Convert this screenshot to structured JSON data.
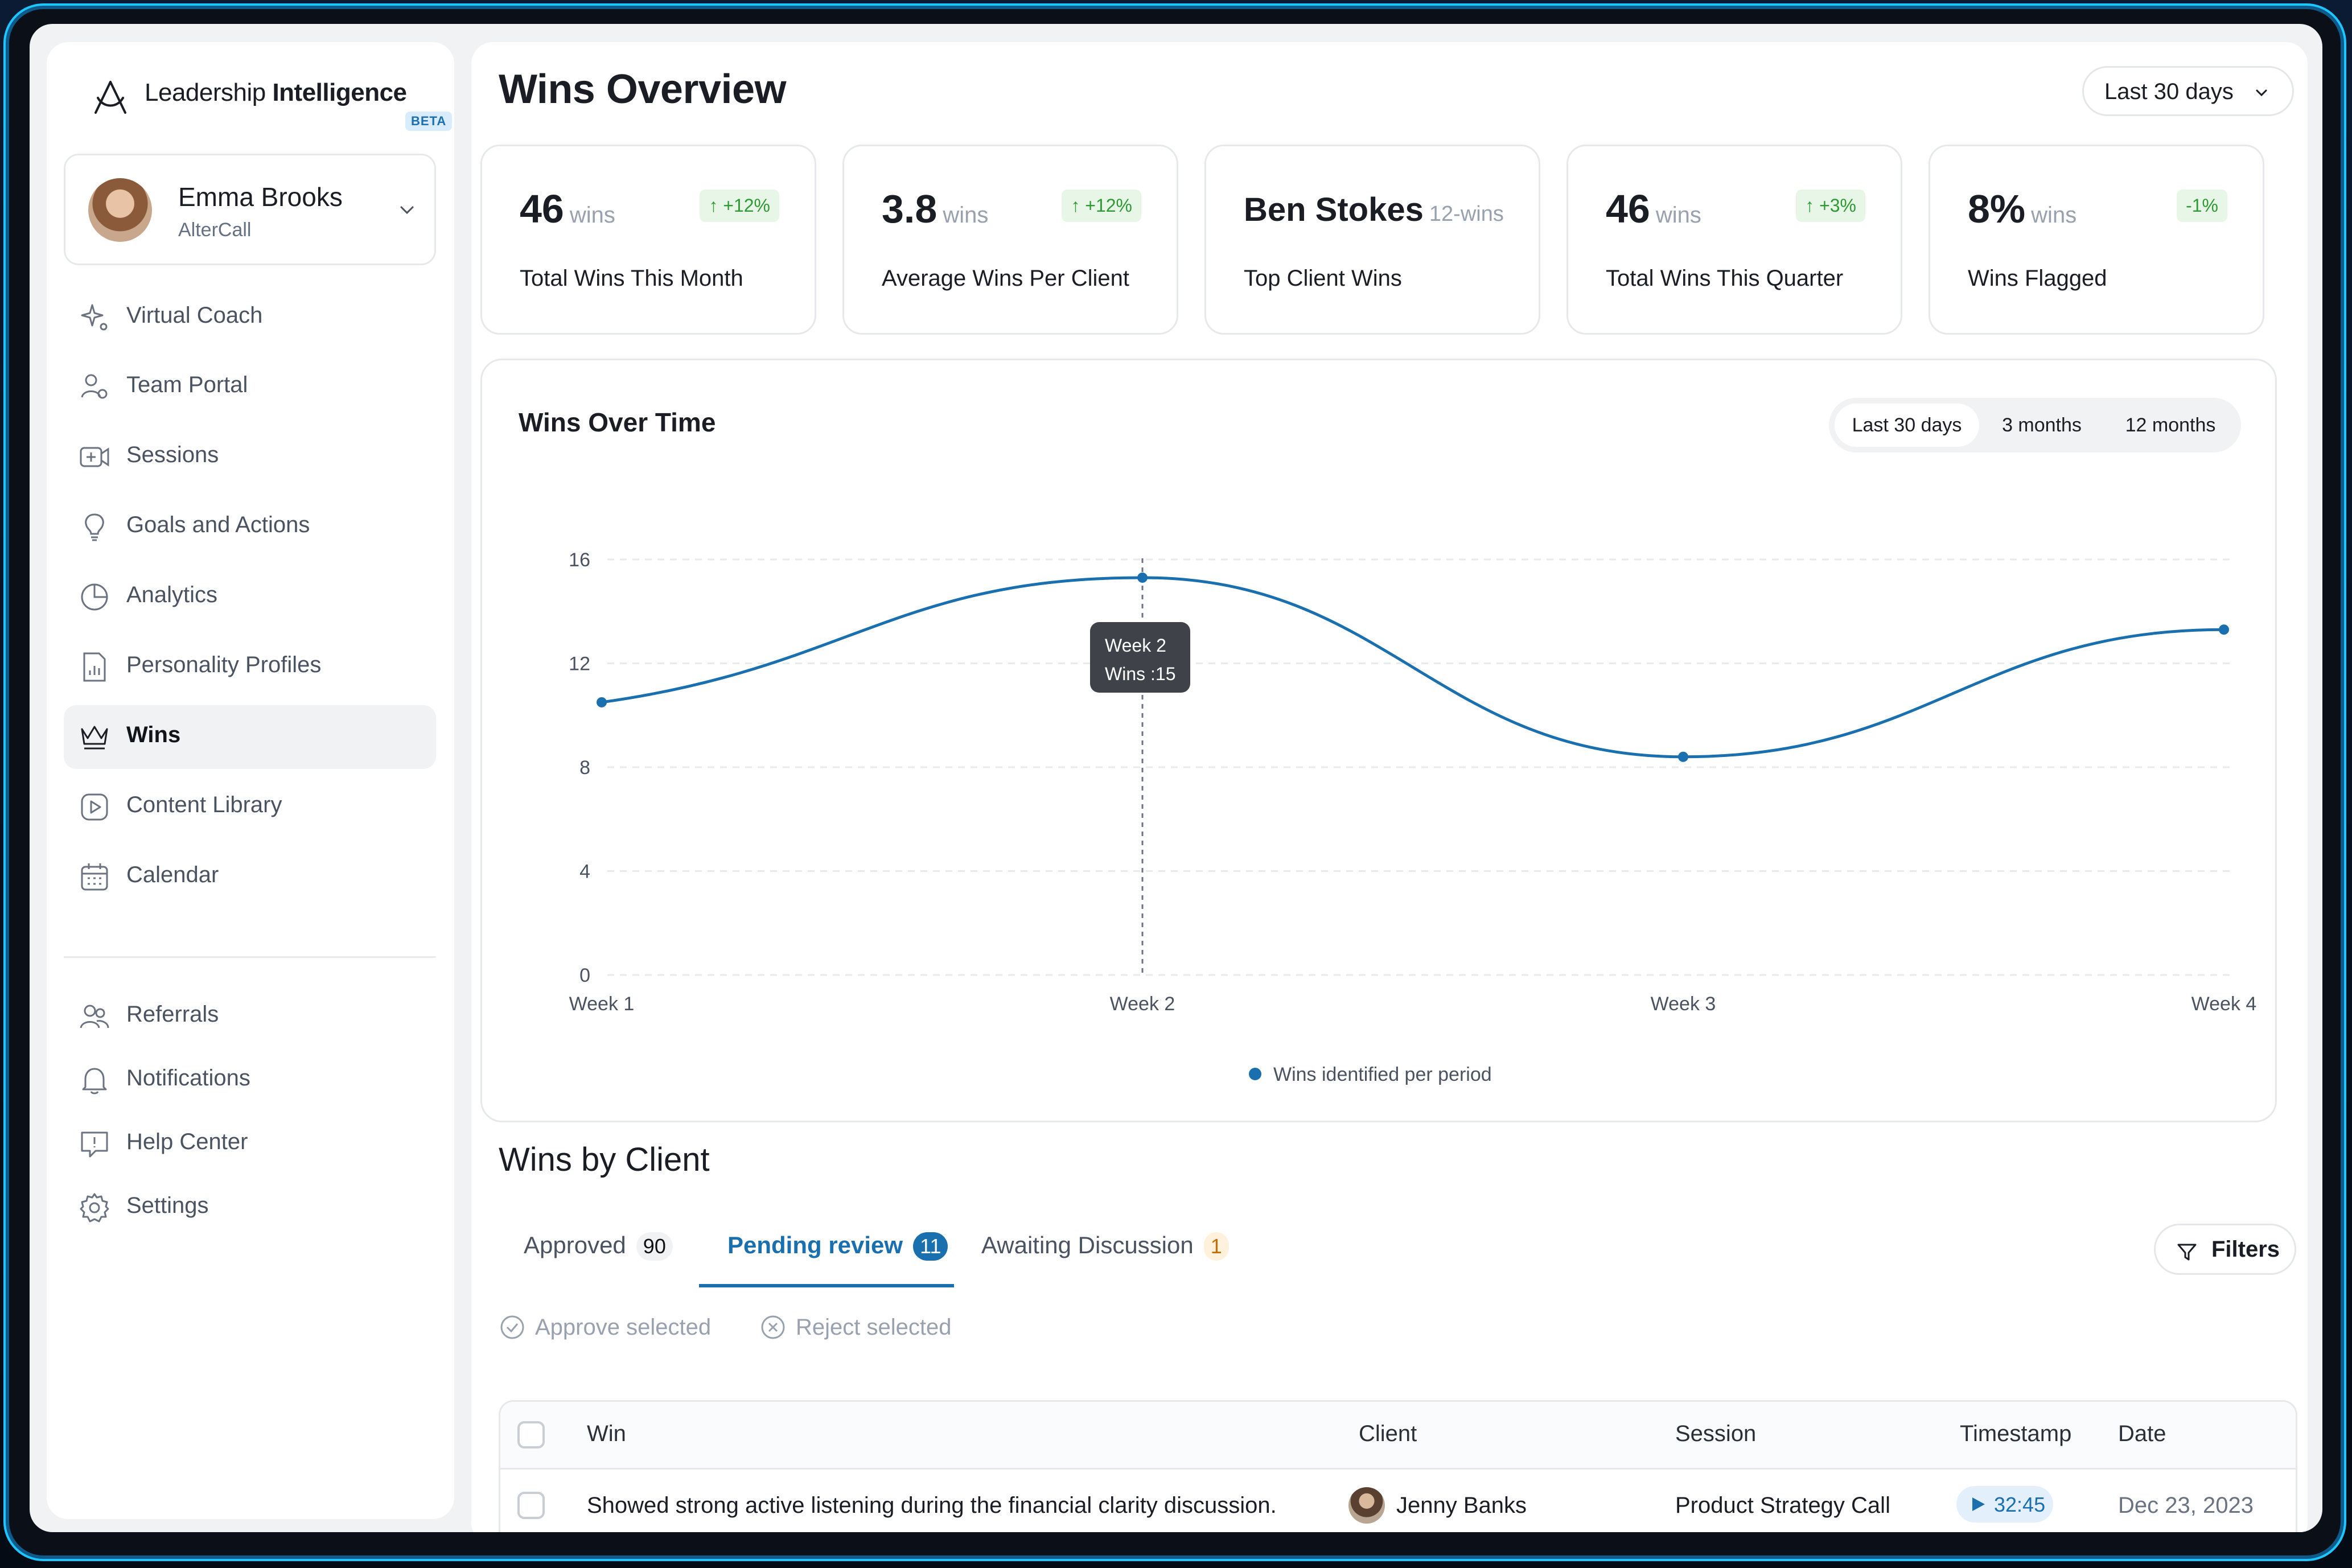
{
  "brand": {
    "name_light": "Leadership ",
    "name_bold": "Intelligence",
    "beta": "BETA"
  },
  "user": {
    "name": "Emma Brooks",
    "org": "AlterCall"
  },
  "sidebar": {
    "items": [
      {
        "label": "Virtual Coach",
        "icon": "sparkle-icon"
      },
      {
        "label": "Team Portal",
        "icon": "team-icon"
      },
      {
        "label": "Sessions",
        "icon": "video-add-icon"
      },
      {
        "label": "Goals and Actions",
        "icon": "lightbulb-icon"
      },
      {
        "label": "Analytics",
        "icon": "pie-chart-icon"
      },
      {
        "label": "Personality Profiles",
        "icon": "document-chart-icon"
      },
      {
        "label": "Wins",
        "icon": "crown-icon",
        "active": true
      },
      {
        "label": "Content Library",
        "icon": "play-square-icon"
      },
      {
        "label": "Calendar",
        "icon": "calendar-icon"
      }
    ],
    "footer_items": [
      {
        "label": "Referrals",
        "icon": "referrals-icon"
      },
      {
        "label": "Notifications",
        "icon": "bell-icon"
      },
      {
        "label": "Help Center",
        "icon": "help-icon"
      },
      {
        "label": "Settings",
        "icon": "gear-icon"
      }
    ]
  },
  "header": {
    "title": "Wins Overview",
    "range": "Last 30 days"
  },
  "stats": [
    {
      "value": "46",
      "unit": "wins",
      "label": "Total Wins This Month",
      "delta": "+12%",
      "delta_dir": "up"
    },
    {
      "value": "3.8",
      "unit": "wins",
      "label": "Average Wins Per Client",
      "delta": "+12%",
      "delta_dir": "up"
    },
    {
      "value": "Ben Stokes",
      "unit": "12-wins",
      "label": "Top Client Wins",
      "delta": ""
    },
    {
      "value": "46",
      "unit": "wins",
      "label": "Total Wins This Quarter",
      "delta": "+3%",
      "delta_dir": "up"
    },
    {
      "value": "8%",
      "unit": "wins",
      "label": "Wins Flagged",
      "delta": "-1%",
      "delta_dir": "none"
    }
  ],
  "chart": {
    "title": "Wins Over Time",
    "ranges": [
      "Last 30 days",
      "3 months",
      "12 months"
    ],
    "active_range": 0,
    "tooltip": {
      "line1": "Week 2",
      "line2": "Wins :15"
    },
    "legend": "Wins identified per period"
  },
  "chart_data": {
    "type": "line",
    "x": [
      "Week 1",
      "Week 2",
      "Week 3",
      "Week 4"
    ],
    "series": [
      {
        "name": "Wins identified per period",
        "values": [
          10.5,
          15.3,
          8.4,
          13.3
        ]
      }
    ],
    "yticks": [
      0,
      4,
      8,
      12,
      16
    ],
    "ylim": [
      0,
      16
    ],
    "grid": true,
    "legend_position": "bottom",
    "color": "#1a6faf"
  },
  "wins_by_client": {
    "title": "Wins by Client",
    "tabs": [
      {
        "label": "Approved",
        "count": "90"
      },
      {
        "label": "Pending review",
        "count": "11"
      },
      {
        "label": "Awaiting Discussion",
        "count": "1"
      }
    ],
    "filters": "Filters",
    "approve": "Approve selected",
    "reject": "Reject selected",
    "columns": [
      "Win",
      "Client",
      "Session",
      "Timestamp",
      "Date"
    ],
    "rows": [
      {
        "win": "Showed strong active listening during the financial clarity discussion.",
        "client": "Jenny Banks",
        "session": "Product Strategy Call",
        "timestamp": "32:45",
        "date": "Dec 23, 2023"
      }
    ]
  }
}
